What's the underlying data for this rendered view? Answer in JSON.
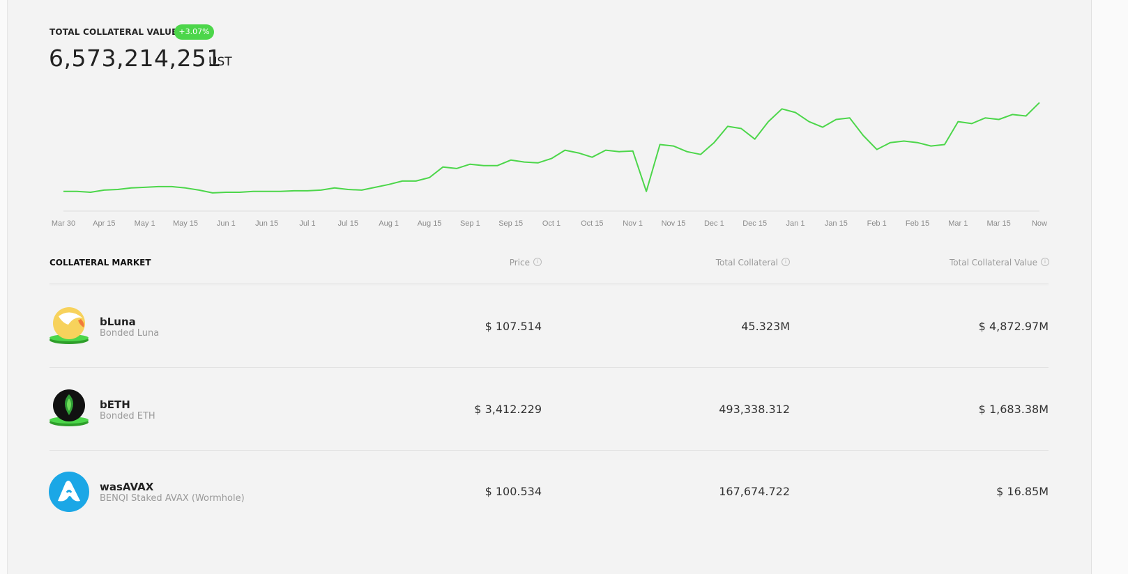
{
  "header": {
    "title": "TOTAL COLLATERAL VALUE",
    "badge": "+3.07%",
    "value": "6,573,214,251",
    "unit": "UST"
  },
  "chart_data": {
    "type": "line",
    "color": "#4cd64a",
    "categories": [
      "Mar 30",
      null,
      null,
      "Apr 15",
      null,
      null,
      "May 1",
      null,
      null,
      "May 15",
      null,
      null,
      "Jun 1",
      null,
      null,
      "Jun 15",
      null,
      null,
      "Jul 1",
      null,
      null,
      "Jul 15",
      null,
      null,
      "Aug 1",
      null,
      null,
      "Aug 15",
      null,
      null,
      "Sep 1",
      null,
      null,
      "Sep 15",
      null,
      null,
      "Oct 1",
      null,
      null,
      "Oct 15",
      null,
      null,
      "Nov 1",
      null,
      null,
      "Nov 15",
      null,
      null,
      "Dec 1",
      null,
      null,
      "Dec 15",
      null,
      null,
      "Jan 1",
      null,
      null,
      "Jan 15",
      null,
      null,
      "Feb 1",
      null,
      null,
      "Feb 15",
      null,
      null,
      "Mar 1",
      null,
      null,
      "Mar 15",
      null,
      null,
      "Now"
    ],
    "values": [
      1.19,
      1.19,
      1.14,
      1.27,
      1.31,
      1.4,
      1.44,
      1.48,
      1.48,
      1.4,
      1.27,
      1.1,
      1.14,
      1.14,
      1.19,
      1.19,
      1.19,
      1.23,
      1.23,
      1.27,
      1.4,
      1.31,
      1.27,
      1.44,
      1.61,
      1.82,
      1.82,
      2.03,
      2.67,
      2.58,
      2.84,
      2.75,
      2.75,
      3.09,
      2.97,
      2.92,
      3.18,
      3.69,
      3.52,
      3.26,
      3.69,
      3.6,
      3.64,
      1.19,
      4.03,
      3.94,
      3.6,
      3.43,
      4.15,
      5.13,
      5.0,
      4.36,
      5.42,
      6.19,
      5.97,
      5.42,
      5.08,
      5.55,
      5.64,
      4.58,
      3.73,
      4.15,
      4.24,
      4.15,
      3.94,
      4.03,
      5.42,
      5.3,
      5.64,
      5.55,
      5.85,
      5.76,
      6.57
    ],
    "ylim": [
      0,
      7.3
    ]
  },
  "table": {
    "columns": [
      "COLLATERAL MARKET",
      "Price",
      "Total Collateral",
      "Total Collateral Value"
    ],
    "rows": [
      [
        "bLuna",
        "Bonded Luna",
        "$ 107.514",
        "45.323M",
        "$ 4,872.97M"
      ],
      [
        "bETH",
        "Bonded ETH",
        "$ 3,412.229",
        "493,338.312",
        "$ 1,683.38M"
      ],
      [
        "wasAVAX",
        "BENQI Staked AVAX (Wormhole)",
        "$ 100.534",
        "167,674.722",
        "$ 16.85M"
      ]
    ]
  }
}
